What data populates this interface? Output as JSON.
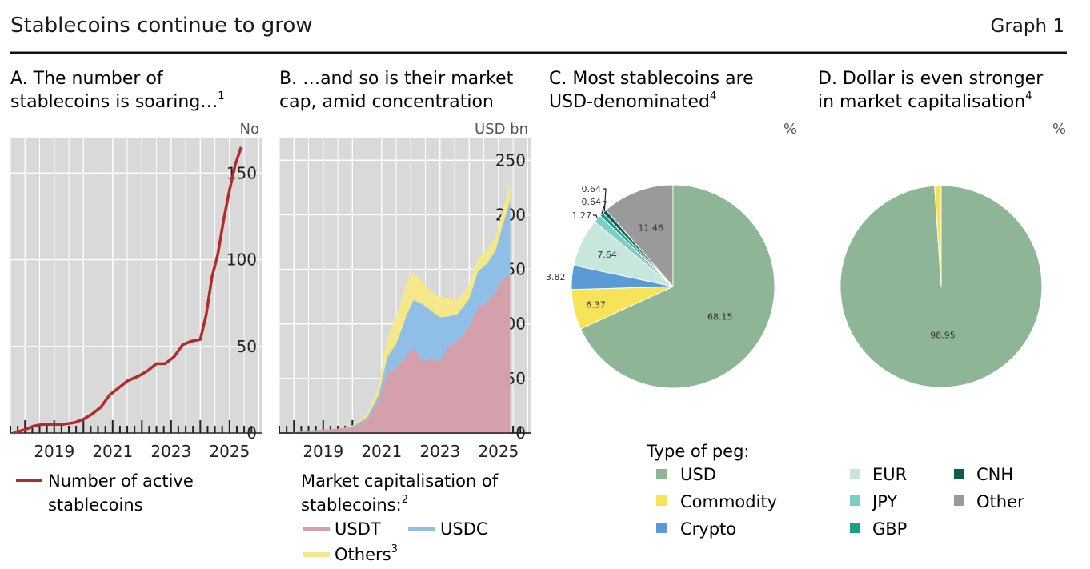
{
  "header": {
    "title": "Stablecoins continue to grow",
    "graph_label": "Graph 1"
  },
  "panels": {
    "a": {
      "title_line1": "A. The number of",
      "title_line2": "stablecoins is soaring…",
      "title_sup": "1",
      "unit": "No"
    },
    "b": {
      "title_line1": "B. …and so is their market",
      "title_line2": "cap, amid concentration",
      "unit": "USD bn"
    },
    "c": {
      "title_line1": "C. Most stablecoins are",
      "title_line2": "USD-denominated",
      "title_sup": "4",
      "unit": "%"
    },
    "d": {
      "title_line1": "D. Dollar is even stronger",
      "title_line2": "in market capitalisation",
      "title_sup": "4",
      "unit": "%"
    }
  },
  "legends": {
    "a": {
      "line1": "Number of active",
      "line2": "stablecoins"
    },
    "b": {
      "heading_line1": "Market capitalisation of",
      "heading_line2": "stablecoins:",
      "heading_sup": "2",
      "usdt": "USDT",
      "usdc": "USDC",
      "others": "Others",
      "others_sup": "3"
    },
    "peg": {
      "heading": "Type of peg:",
      "usd": "USD",
      "commodity": "Commodity",
      "crypto": "Crypto",
      "eur": "EUR",
      "jpy": "JPY",
      "gbp": "GBP",
      "cnh": "CNH",
      "other": "Other"
    }
  },
  "colors": {
    "usd": "#8db596",
    "commodity": "#f7e35a",
    "crypto": "#5b9bd5",
    "eur": "#c7e6dc",
    "jpy": "#7ccdc2",
    "gbp": "#17a08c",
    "cnh": "#0f5a48",
    "other": "#9a9a9a",
    "usdt": "#d4a0ac",
    "usdc": "#8fbfe6",
    "others_area": "#f5e88a",
    "line": "#b22a2a",
    "panel_bg": "#d9d9d9",
    "grid": "#ffffff"
  },
  "chart_data": [
    {
      "type": "line",
      "title": "A. The number of stablecoins is soaring…",
      "ylabel": "No",
      "xlim": [
        2017.5,
        2026.1
      ],
      "ylim": [
        0,
        170
      ],
      "x_ticks": [
        2019,
        2021,
        2023,
        2025
      ],
      "y_ticks": [
        0,
        50,
        100,
        150
      ],
      "series": [
        {
          "name": "Number of active stablecoins",
          "x": [
            2017.6,
            2018.0,
            2018.3,
            2018.6,
            2019.0,
            2019.3,
            2019.7,
            2020.0,
            2020.3,
            2020.6,
            2020.9,
            2021.2,
            2021.5,
            2021.9,
            2022.2,
            2022.5,
            2022.8,
            2023.1,
            2023.4,
            2023.7,
            2024.0,
            2024.2,
            2024.4,
            2024.6,
            2024.8,
            2025.0,
            2025.2,
            2025.4
          ],
          "y": [
            0,
            2,
            4,
            5,
            5,
            5,
            6,
            8,
            11,
            15,
            22,
            26,
            30,
            33,
            36,
            40,
            40,
            44,
            51,
            53,
            54,
            68,
            90,
            103,
            123,
            140,
            155,
            165
          ]
        }
      ]
    },
    {
      "type": "area",
      "stacked": true,
      "title": "B. …and so is their market cap, amid concentration",
      "ylabel": "USD bn",
      "xlim": [
        2017.5,
        2026.1
      ],
      "ylim": [
        0,
        270
      ],
      "x_ticks": [
        2019,
        2021,
        2023,
        2025
      ],
      "y_ticks": [
        0,
        50,
        100,
        150,
        200,
        250
      ],
      "x": [
        2017.6,
        2018.5,
        2019.5,
        2020.0,
        2020.5,
        2020.9,
        2021.2,
        2021.5,
        2021.9,
        2022.1,
        2022.4,
        2022.7,
        2023.0,
        2023.3,
        2023.6,
        2024.0,
        2024.3,
        2024.6,
        2024.9,
        2025.1,
        2025.4
      ],
      "series": [
        {
          "name": "USDT",
          "values": [
            0,
            2,
            4,
            5,
            12,
            30,
            55,
            60,
            73,
            78,
            66,
            68,
            66,
            80,
            84,
            98,
            115,
            120,
            130,
            140,
            145
          ]
        },
        {
          "name": "USDC",
          "values": [
            0,
            0,
            0,
            1,
            2,
            5,
            15,
            22,
            38,
            44,
            52,
            44,
            40,
            27,
            25,
            25,
            33,
            35,
            37,
            46,
            68
          ]
        },
        {
          "name": "Others",
          "values": [
            0,
            0,
            0,
            1,
            3,
            8,
            18,
            25,
            30,
            25,
            20,
            18,
            18,
            17,
            13,
            13,
            12,
            12,
            12,
            14,
            15
          ]
        }
      ]
    },
    {
      "type": "pie",
      "title": "C. Most stablecoins are USD-denominated",
      "unit": "%",
      "labels": [
        "USD",
        "Commodity",
        "Crypto",
        "EUR",
        "JPY",
        "GBP",
        "CNH",
        "Other"
      ],
      "values": [
        68.15,
        6.37,
        3.82,
        7.64,
        1.27,
        0.64,
        0.64,
        11.46
      ],
      "value_labels": [
        "68.15",
        "6.37",
        "3.82",
        "7.64",
        "1.27",
        "0.64",
        "0.64",
        "11.46"
      ]
    },
    {
      "type": "pie",
      "title": "D. Dollar is even stronger in market capitalisation",
      "unit": "%",
      "labels": [
        "USD",
        "Commodity"
      ],
      "values": [
        98.95,
        1.05
      ],
      "value_labels": [
        "98.95"
      ]
    }
  ]
}
